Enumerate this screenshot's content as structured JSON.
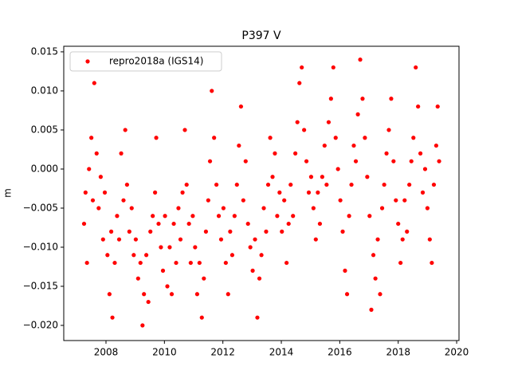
{
  "chart_data": {
    "type": "scatter",
    "title": "P397 V",
    "ylabel": "m",
    "xlim": [
      2006.555,
      2020.08
    ],
    "ylim": [
      -0.02194,
      0.01571
    ],
    "xticks": [
      2008,
      2010,
      2012,
      2014,
      2016,
      2018,
      2020
    ],
    "yticks": [
      {
        "value": -0.02,
        "label": "−0.020"
      },
      {
        "value": -0.015,
        "label": "−0.015"
      },
      {
        "value": -0.01,
        "label": "−0.010"
      },
      {
        "value": -0.005,
        "label": "−0.005"
      },
      {
        "value": 0,
        "label": "0.000"
      },
      {
        "value": 0.005,
        "label": "0.005"
      },
      {
        "value": 0.01,
        "label": "0.010"
      },
      {
        "value": 0.015,
        "label": "0.015"
      }
    ],
    "legend": "upper left",
    "grid": false,
    "x": [
      2007.25,
      2007.3,
      2007.35,
      2007.42,
      2007.5,
      2007.55,
      2007.6,
      2007.68,
      2007.75,
      2007.82,
      2007.9,
      2007.96,
      2008.05,
      2008.12,
      2008.18,
      2008.22,
      2008.3,
      2008.38,
      2008.45,
      2008.52,
      2008.6,
      2008.66,
      2008.72,
      2008.8,
      2008.88,
      2008.95,
      2009.02,
      2009.1,
      2009.18,
      2009.25,
      2009.3,
      2009.38,
      2009.45,
      2009.52,
      2009.6,
      2009.68,
      2009.72,
      2009.8,
      2009.88,
      2009.95,
      2010.02,
      2010.1,
      2010.18,
      2010.25,
      2010.32,
      2010.4,
      2010.48,
      2010.55,
      2010.62,
      2010.7,
      2010.76,
      2010.84,
      2010.9,
      2010.97,
      2011.05,
      2011.12,
      2011.2,
      2011.28,
      2011.35,
      2011.42,
      2011.5,
      2011.56,
      2011.62,
      2011.7,
      2011.78,
      2011.86,
      2011.94,
      2012.02,
      2012.1,
      2012.18,
      2012.25,
      2012.32,
      2012.4,
      2012.48,
      2012.55,
      2012.62,
      2012.7,
      2012.78,
      2012.86,
      2012.94,
      2013.02,
      2013.1,
      2013.18,
      2013.25,
      2013.32,
      2013.4,
      2013.48,
      2013.55,
      2013.62,
      2013.7,
      2013.78,
      2013.86,
      2013.94,
      2014.02,
      2014.1,
      2014.18,
      2014.25,
      2014.32,
      2014.4,
      2014.48,
      2014.55,
      2014.62,
      2014.7,
      2014.78,
      2014.86,
      2014.94,
      2015.02,
      2015.1,
      2015.18,
      2015.25,
      2015.32,
      2015.4,
      2015.48,
      2015.55,
      2015.62,
      2015.7,
      2015.78,
      2015.86,
      2015.94,
      2016.02,
      2016.1,
      2016.18,
      2016.25,
      2016.32,
      2016.4,
      2016.48,
      2016.55,
      2016.62,
      2016.7,
      2016.78,
      2016.86,
      2016.94,
      2017.02,
      2017.08,
      2017.15,
      2017.22,
      2017.3,
      2017.38,
      2017.45,
      2017.52,
      2017.6,
      2017.68,
      2017.76,
      2017.84,
      2017.92,
      2018.0,
      2018.08,
      2018.15,
      2018.22,
      2018.3,
      2018.38,
      2018.45,
      2018.52,
      2018.6,
      2018.68,
      2018.76,
      2018.84,
      2018.92,
      2019.0,
      2019.08,
      2019.15,
      2019.22,
      2019.3,
      2019.35,
      2019.4
    ],
    "series": [
      {
        "name": "repro2018a (IGS14)",
        "color": "#ff0000",
        "values": [
          -0.007,
          -0.003,
          -0.012,
          0.0,
          0.004,
          -0.004,
          0.011,
          0.002,
          -0.005,
          -0.001,
          -0.009,
          -0.003,
          -0.011,
          -0.016,
          -0.008,
          -0.019,
          -0.012,
          -0.006,
          -0.009,
          0.002,
          -0.004,
          0.005,
          -0.002,
          -0.008,
          -0.005,
          -0.011,
          -0.009,
          -0.014,
          -0.012,
          -0.02,
          -0.016,
          -0.011,
          -0.017,
          -0.008,
          -0.006,
          -0.003,
          0.004,
          -0.007,
          -0.01,
          -0.013,
          -0.006,
          -0.015,
          -0.01,
          -0.016,
          -0.007,
          -0.012,
          -0.005,
          -0.009,
          -0.003,
          0.005,
          -0.002,
          -0.007,
          -0.012,
          -0.006,
          -0.01,
          -0.016,
          -0.012,
          -0.019,
          -0.014,
          -0.008,
          -0.004,
          0.001,
          0.01,
          0.004,
          -0.002,
          -0.006,
          -0.009,
          -0.005,
          -0.012,
          -0.016,
          -0.008,
          -0.011,
          -0.006,
          -0.002,
          0.003,
          0.008,
          -0.004,
          0.001,
          -0.007,
          -0.01,
          -0.013,
          -0.009,
          -0.019,
          -0.014,
          -0.011,
          -0.005,
          -0.008,
          -0.002,
          0.004,
          -0.001,
          0.002,
          -0.006,
          -0.003,
          -0.008,
          -0.004,
          -0.012,
          -0.007,
          -0.002,
          -0.006,
          0.002,
          0.006,
          0.011,
          0.013,
          0.005,
          0.001,
          -0.003,
          -0.001,
          -0.005,
          -0.009,
          -0.003,
          -0.007,
          -0.001,
          0.003,
          -0.002,
          0.006,
          0.009,
          0.013,
          0.004,
          0.0,
          -0.004,
          -0.008,
          -0.013,
          -0.016,
          -0.006,
          -0.002,
          0.003,
          0.001,
          0.007,
          0.014,
          0.009,
          0.004,
          -0.001,
          -0.006,
          -0.018,
          -0.011,
          -0.014,
          -0.009,
          -0.016,
          -0.005,
          -0.002,
          0.002,
          0.005,
          0.009,
          0.001,
          -0.004,
          -0.007,
          -0.012,
          -0.009,
          -0.004,
          -0.008,
          -0.002,
          0.001,
          0.004,
          0.013,
          0.008,
          0.002,
          -0.003,
          0.0,
          -0.005,
          -0.009,
          -0.012,
          -0.002,
          0.003,
          0.008,
          0.001
        ]
      }
    ]
  }
}
